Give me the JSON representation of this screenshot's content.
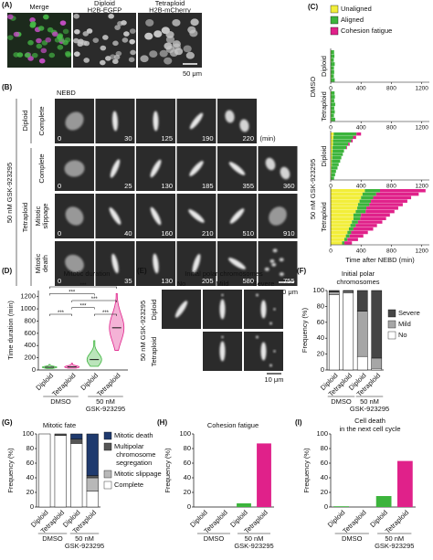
{
  "image_panels": {
    "a": {
      "label": "(A)",
      "columns": [
        [
          "Merge"
        ],
        [
          "Diploid",
          "H2B-EGFP"
        ],
        [
          "Tetraploid",
          "H2B-mCherry"
        ]
      ],
      "scale_bar": "50 μm"
    },
    "b": {
      "label": "(B)",
      "nebd": "NEBD",
      "treatment": "50 nM GSK-923295",
      "ploidy": [
        "Diploid",
        "Tetraploid"
      ],
      "unit": "(min)",
      "rows": [
        {
          "fate": [
            "Complete"
          ],
          "times": [
            0,
            30,
            125,
            190,
            220
          ]
        },
        {
          "fate": [
            "Complete"
          ],
          "times": [
            0,
            25,
            130,
            185,
            355,
            360
          ]
        },
        {
          "fate": [
            "Mitotic",
            "slippage"
          ],
          "times": [
            0,
            40,
            160,
            210,
            510,
            910
          ]
        },
        {
          "fate": [
            "Mitotic",
            "death"
          ],
          "times": [
            0,
            35,
            130,
            205,
            580,
            755
          ]
        }
      ],
      "scale_bar": "10 μm"
    },
    "e": {
      "label": "(E)",
      "title": "Initial polar chromosomes",
      "columns": [
        "No",
        "Mild",
        "Severe"
      ],
      "treatment": "50 nM GSK-923295",
      "rows": [
        "Diploid",
        "Tetraploid"
      ],
      "scale_bar": "10 μm"
    }
  },
  "chart_data": [
    {
      "type": "timeline",
      "label": "(C)",
      "legend": [
        {
          "name": "Unaligned",
          "color": "#f2ee3a"
        },
        {
          "name": "Aligned",
          "color": "#3cb43c"
        },
        {
          "name": "Cohesion fatigue",
          "color": "#e0218a"
        }
      ],
      "groups": [
        "DMSO",
        "50 nM GSK-923295"
      ],
      "subplots": [
        {
          "name": "Diploid",
          "segments": [
            [
              5,
              4,
              6,
              3,
              5,
              4,
              6,
              5
            ],
            [
              40,
              45,
              35,
              50,
              38,
              42,
              36,
              48
            ],
            [
              0,
              0,
              0,
              0,
              0,
              0,
              0,
              0
            ]
          ]
        },
        {
          "name": "Tetraploid",
          "segments": [
            [
              6,
              5,
              7,
              4,
              5,
              6,
              5,
              7
            ],
            [
              45,
              50,
              40,
              55,
              42,
              48,
              38,
              52
            ],
            [
              0,
              0,
              0,
              0,
              0,
              0,
              0,
              0
            ]
          ]
        },
        {
          "name": "Diploid",
          "segments": [
            [
              40,
              35,
              30,
              30,
              25,
              25,
              20,
              20,
              15,
              15,
              10,
              10,
              8,
              5
            ],
            [
              300,
              260,
              240,
              200,
              180,
              150,
              140,
              120,
              110,
              90,
              80,
              60,
              50,
              40
            ],
            [
              60,
              40,
              20,
              20,
              10,
              0,
              0,
              0,
              0,
              0,
              0,
              0,
              0,
              0
            ]
          ]
        },
        {
          "name": "Tetraploid",
          "segments": [
            [
              450,
              420,
              400,
              380,
              360,
              350,
              330,
              300,
              300,
              280,
              260,
              240,
              220,
              200,
              180,
              150
            ],
            [
              200,
              180,
              160,
              150,
              150,
              120,
              130,
              100,
              90,
              80,
              70,
              60,
              50,
              50,
              40,
              30
            ],
            [
              600,
              560,
              500,
              480,
              440,
              420,
              380,
              380,
              340,
              320,
              280,
              260,
              220,
              180,
              140,
              100
            ]
          ]
        }
      ],
      "xlim": [
        0,
        1300
      ],
      "xticks": [
        0,
        400,
        800,
        1200
      ],
      "xlabel": "Time after NEBD (min)"
    },
    {
      "type": "violin",
      "label": "(D)",
      "title": "Mitotic duration",
      "ylabel": "Time duration (min)",
      "categories": [
        "Diploid",
        "Tetraploid",
        "Diploid",
        "Tetraploid"
      ],
      "group_labels": [
        "DMSO",
        "50 nM",
        "GSK-923295"
      ],
      "colors": [
        "#3cb43c",
        "#e0218a",
        "#3cb43c",
        "#e0218a"
      ],
      "medians": [
        45,
        50,
        170,
        690
      ],
      "ranges": [
        [
          25,
          90
        ],
        [
          30,
          110
        ],
        [
          60,
          480
        ],
        [
          320,
          1250
        ]
      ],
      "significance": [
        "***",
        "***",
        "***",
        "***",
        "***",
        "***"
      ],
      "ylim": [
        0,
        1300
      ],
      "yticks": [
        0,
        200,
        400,
        600,
        800,
        1000,
        1200
      ]
    },
    {
      "type": "bar",
      "stacked": true,
      "label": "(F)",
      "title": [
        "Initial polar",
        "chromosomes"
      ],
      "ylabel": "Frequency (%)",
      "categories": [
        "Diploid",
        "Tetraploid",
        "Diploid",
        "Tetraploid"
      ],
      "group_labels": [
        "DMSO",
        "50 nM",
        "GSK-923295"
      ],
      "series": [
        {
          "name": "No",
          "color": "#ffffff",
          "values": [
            95,
            97,
            17,
            2
          ]
        },
        {
          "name": "Mild",
          "color": "#a6a6a6",
          "values": [
            3,
            2,
            57,
            13
          ]
        },
        {
          "name": "Severe",
          "color": "#454545",
          "values": [
            2,
            1,
            26,
            85
          ]
        }
      ],
      "ylim": [
        0,
        100
      ],
      "yticks": [
        0,
        20,
        40,
        60,
        80,
        100
      ]
    },
    {
      "type": "bar",
      "stacked": true,
      "label": "(G)",
      "title": "Mitotic fate",
      "ylabel": "Frequency (%)",
      "categories": [
        "Diploid",
        "Tetraploid",
        "Diploid",
        "Tetraploid"
      ],
      "group_labels": [
        "DMSO",
        "50 nM",
        "GSK-923295"
      ],
      "series": [
        {
          "name": "Complete",
          "color": "#ffffff",
          "values": [
            100,
            98,
            87,
            22
          ]
        },
        {
          "name": "Mitotic slippage",
          "color": "#b8b8b8",
          "values": [
            0,
            0,
            0,
            18
          ]
        },
        {
          "name": "Multipolar chromosome segregation",
          "color": "#555555",
          "values": [
            0,
            2,
            6,
            3
          ]
        },
        {
          "name": "Mitotic death",
          "color": "#1f3a6e",
          "values": [
            0,
            0,
            7,
            57
          ]
        }
      ],
      "ylim": [
        0,
        100
      ],
      "yticks": [
        0,
        20,
        40,
        60,
        80,
        100
      ]
    },
    {
      "type": "bar",
      "label": "(H)",
      "title": "Cohesion fatigue",
      "ylabel": "Frequency (%)",
      "categories": [
        "Diploid",
        "Tetraploid",
        "Diploid",
        "Tetraploid"
      ],
      "group_labels": [
        "DMSO",
        "50 nM",
        "GSK-923295"
      ],
      "values": [
        0,
        0,
        5,
        87
      ],
      "colors": [
        "#3cb43c",
        "#e0218a",
        "#3cb43c",
        "#e0218a"
      ],
      "ylim": [
        0,
        100
      ],
      "yticks": [
        0,
        20,
        40,
        60,
        80,
        100
      ]
    },
    {
      "type": "bar",
      "label": "(I)",
      "title": [
        "Cell death",
        "in the next cell cycle"
      ],
      "ylabel": "Frequency (%)",
      "categories": [
        "Diploid",
        "Tetraploid",
        "Diploid",
        "Tetraploid"
      ],
      "group_labels": [
        "DMSO",
        "50 nM",
        "GSK-923295"
      ],
      "values": [
        1,
        0,
        15,
        63
      ],
      "colors": [
        "#3cb43c",
        "#e0218a",
        "#3cb43c",
        "#e0218a"
      ],
      "ylim": [
        0,
        100
      ],
      "yticks": [
        0,
        20,
        40,
        60,
        80,
        100
      ]
    }
  ]
}
